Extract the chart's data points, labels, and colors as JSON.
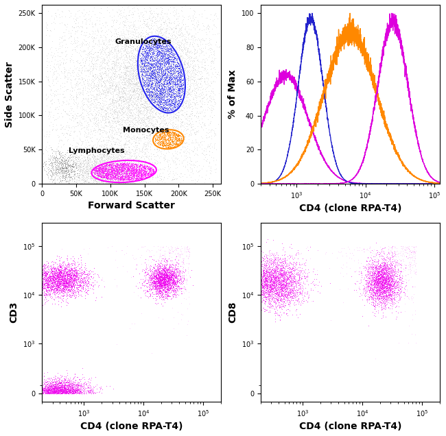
{
  "fig_width": 6.5,
  "fig_height": 6.36,
  "dpi": 100,
  "background": "#ffffff",
  "scatter_dot_color": "#aaaaaa",
  "granulocyte_color": "#2222ee",
  "monocyte_color": "#ff8800",
  "lymphocyte_color": "#ff00ff",
  "magenta": "#ee00ee",
  "gate_linewidth": 1.5,
  "scatter_xlabel": "Forward Scatter",
  "scatter_ylabel": "Side Scatter",
  "scatter_xticks": [
    0,
    50000,
    100000,
    150000,
    200000,
    250000
  ],
  "scatter_xticklabels": [
    "0",
    "50K",
    "100K",
    "150K",
    "200K",
    "250K"
  ],
  "scatter_yticks": [
    0,
    50000,
    100000,
    150000,
    200000,
    250000
  ],
  "scatter_yticklabels": [
    "0",
    "50K",
    "100K",
    "150K",
    "200K",
    "250K"
  ],
  "hist_xlabel": "CD4 (clone RPA-T4)",
  "hist_ylabel": "% of Max",
  "cd3_xlabel": "CD4 (clone RPA-T4)",
  "cd3_ylabel": "CD3",
  "cd8_xlabel": "CD4 (clone RPA-T4)",
  "cd8_ylabel": "CD8"
}
